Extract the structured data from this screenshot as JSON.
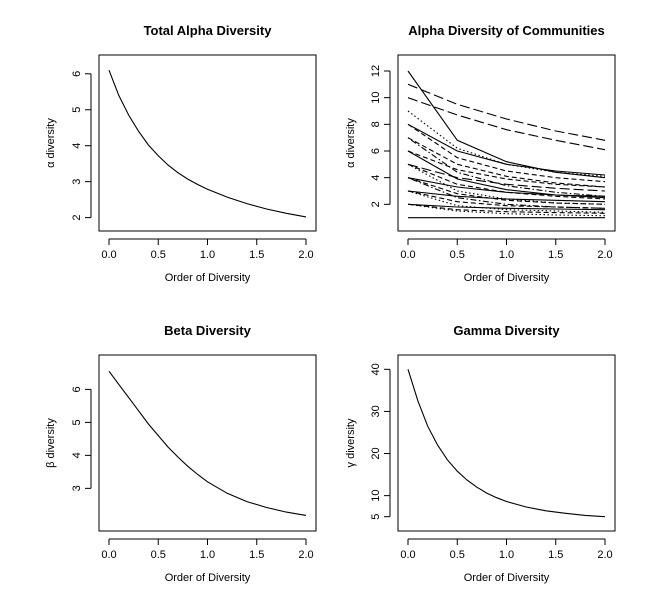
{
  "chart_data": [
    {
      "type": "line",
      "title": "Total Alpha Diversity",
      "xlabel": "Order of Diversity",
      "ylabel": "α diversity",
      "xlim": [
        0,
        2
      ],
      "ylim": [
        1.85,
        6.3
      ],
      "xticks": [
        0,
        0.5,
        1,
        1.5,
        2
      ],
      "xtick_labels": [
        "0.0",
        "0.5",
        "1.0",
        "1.5",
        "2.0"
      ],
      "yticks": [
        2,
        3,
        4,
        5,
        6
      ],
      "ytick_labels": [
        "2",
        "3",
        "4",
        "5",
        "6"
      ],
      "series": [
        {
          "x": [
            0,
            0.1,
            0.2,
            0.3,
            0.4,
            0.5,
            0.6,
            0.7,
            0.8,
            0.9,
            1.0,
            1.2,
            1.4,
            1.6,
            1.8,
            2.0
          ],
          "y": [
            6.1,
            5.4,
            4.85,
            4.4,
            4.02,
            3.72,
            3.46,
            3.25,
            3.07,
            2.92,
            2.79,
            2.57,
            2.39,
            2.24,
            2.12,
            2.02
          ],
          "dash": "solid"
        }
      ]
    },
    {
      "type": "line",
      "title": "Alpha Diversity of Communities",
      "xlabel": "Order of Diversity",
      "ylabel": "α diversity",
      "xlim": [
        0,
        2
      ],
      "ylim": [
        0.6,
        12.6
      ],
      "xticks": [
        0,
        0.5,
        1,
        1.5,
        2
      ],
      "xtick_labels": [
        "0.0",
        "0.5",
        "1.0",
        "1.5",
        "2.0"
      ],
      "yticks": [
        2,
        4,
        6,
        8,
        10,
        12
      ],
      "ytick_labels": [
        "2",
        "4",
        "6",
        "8",
        "10",
        "12"
      ],
      "series": [
        {
          "x": [
            0,
            2
          ],
          "y": [
            1.0,
            1.0
          ],
          "dash": "solid"
        },
        {
          "x": [
            0,
            0.5,
            1.0,
            1.5,
            2.0
          ],
          "y": [
            12.0,
            6.8,
            5.2,
            4.4,
            4.0
          ],
          "dash": "solid"
        },
        {
          "x": [
            0,
            0.5,
            1.0,
            1.5,
            2.0
          ],
          "y": [
            11.0,
            9.5,
            8.4,
            7.5,
            6.8
          ],
          "dash": "longdash"
        },
        {
          "x": [
            0,
            0.5,
            1.0,
            1.5,
            2.0
          ],
          "y": [
            10.0,
            8.7,
            7.6,
            6.8,
            6.1
          ],
          "dash": "longdash"
        },
        {
          "x": [
            0,
            0.5,
            1.0,
            1.5,
            2.0
          ],
          "y": [
            9.0,
            6.2,
            5.0,
            4.4,
            4.1
          ],
          "dash": "dotted"
        },
        {
          "x": [
            0,
            0.5,
            1.0,
            1.5,
            2.0
          ],
          "y": [
            8.0,
            6.0,
            5.0,
            4.5,
            4.2
          ],
          "dash": "solid"
        },
        {
          "x": [
            0,
            0.5,
            1.0,
            1.5,
            2.0
          ],
          "y": [
            8.0,
            5.5,
            4.5,
            4.0,
            3.7
          ],
          "dash": "dashed"
        },
        {
          "x": [
            0,
            0.5,
            1.0,
            1.5,
            2.0
          ],
          "y": [
            7.0,
            5.0,
            4.1,
            3.6,
            3.3
          ],
          "dash": "dashed"
        },
        {
          "x": [
            0,
            0.5,
            1.0,
            1.5,
            2.0
          ],
          "y": [
            7.0,
            4.4,
            3.4,
            2.9,
            2.6
          ],
          "dash": "dotdash"
        },
        {
          "x": [
            0,
            0.5,
            1.0,
            1.5,
            2.0
          ],
          "y": [
            6.0,
            4.6,
            3.9,
            3.5,
            3.3
          ],
          "dash": "dashed"
        },
        {
          "x": [
            0,
            0.5,
            1.0,
            1.5,
            2.0
          ],
          "y": [
            6.0,
            3.9,
            3.1,
            2.7,
            2.5
          ],
          "dash": "solid"
        },
        {
          "x": [
            0,
            0.5,
            1.0,
            1.5,
            2.0
          ],
          "y": [
            5.0,
            4.0,
            3.5,
            3.2,
            3.0
          ],
          "dash": "longdash"
        },
        {
          "x": [
            0,
            0.5,
            1.0,
            1.5,
            2.0
          ],
          "y": [
            5.0,
            3.5,
            2.9,
            2.6,
            2.4
          ],
          "dash": "dashed"
        },
        {
          "x": [
            0,
            0.5,
            1.0,
            1.5,
            2.0
          ],
          "y": [
            5.0,
            3.0,
            2.4,
            2.1,
            2.0
          ],
          "dash": "dotted"
        },
        {
          "x": [
            0,
            0.5,
            1.0,
            1.5,
            2.0
          ],
          "y": [
            4.0,
            3.3,
            2.9,
            2.7,
            2.6
          ],
          "dash": "solid"
        },
        {
          "x": [
            0,
            0.5,
            1.0,
            1.5,
            2.0
          ],
          "y": [
            4.0,
            2.8,
            2.3,
            2.1,
            2.0
          ],
          "dash": "dashed"
        },
        {
          "x": [
            0,
            0.5,
            1.0,
            1.5,
            2.0
          ],
          "y": [
            4.0,
            2.5,
            2.0,
            1.8,
            1.7
          ],
          "dash": "dotdash"
        },
        {
          "x": [
            0,
            0.5,
            1.0,
            1.5,
            2.0
          ],
          "y": [
            3.0,
            2.6,
            2.4,
            2.3,
            2.2
          ],
          "dash": "solid"
        },
        {
          "x": [
            0,
            0.5,
            1.0,
            1.5,
            2.0
          ],
          "y": [
            3.0,
            2.2,
            1.9,
            1.8,
            1.7
          ],
          "dash": "dashed"
        },
        {
          "x": [
            0,
            0.5,
            1.0,
            1.5,
            2.0
          ],
          "y": [
            3.0,
            1.9,
            1.6,
            1.5,
            1.4
          ],
          "dash": "dotted"
        },
        {
          "x": [
            0,
            0.5,
            1.0,
            1.5,
            2.0
          ],
          "y": [
            2.0,
            1.8,
            1.7,
            1.65,
            1.6
          ],
          "dash": "solid"
        },
        {
          "x": [
            0,
            0.5,
            1.0,
            1.5,
            2.0
          ],
          "y": [
            2.0,
            1.6,
            1.45,
            1.38,
            1.33
          ],
          "dash": "dashed"
        },
        {
          "x": [
            0,
            0.5,
            1.0,
            1.5,
            2.0
          ],
          "y": [
            2.0,
            1.5,
            1.3,
            1.2,
            1.15
          ],
          "dash": "dotted"
        }
      ]
    },
    {
      "type": "line",
      "title": "Beta Diversity",
      "xlabel": "Order of Diversity",
      "ylabel": "β diversity",
      "xlim": [
        0,
        2
      ],
      "ylim": [
        1.95,
        6.8
      ],
      "xticks": [
        0,
        0.5,
        1,
        1.5,
        2
      ],
      "xtick_labels": [
        "0.0",
        "0.5",
        "1.0",
        "1.5",
        "2.0"
      ],
      "yticks": [
        3,
        4,
        5,
        6
      ],
      "ytick_labels": [
        "3",
        "4",
        "5",
        "6"
      ],
      "series": [
        {
          "x": [
            0,
            0.1,
            0.2,
            0.3,
            0.4,
            0.5,
            0.6,
            0.7,
            0.8,
            0.9,
            1.0,
            1.2,
            1.4,
            1.6,
            1.8,
            2.0
          ],
          "y": [
            6.55,
            6.15,
            5.75,
            5.35,
            4.95,
            4.6,
            4.25,
            3.95,
            3.67,
            3.42,
            3.2,
            2.85,
            2.6,
            2.42,
            2.28,
            2.18
          ],
          "dash": "solid"
        }
      ]
    },
    {
      "type": "line",
      "title": "Gamma Diversity",
      "xlabel": "Order of Diversity",
      "ylabel": "γ diversity",
      "xlim": [
        0,
        2
      ],
      "ylim": [
        3.5,
        41.5
      ],
      "xticks": [
        0,
        0.5,
        1,
        1.5,
        2
      ],
      "xtick_labels": [
        "0.0",
        "0.5",
        "1.0",
        "1.5",
        "2.0"
      ],
      "yticks": [
        5,
        10,
        20,
        30,
        40
      ],
      "ytick_labels": [
        "5",
        "10",
        "20",
        "30",
        "40"
      ],
      "series": [
        {
          "x": [
            0,
            0.1,
            0.2,
            0.3,
            0.4,
            0.5,
            0.6,
            0.7,
            0.8,
            0.9,
            1.0,
            1.2,
            1.4,
            1.6,
            1.8,
            2.0
          ],
          "y": [
            40,
            32.5,
            26.5,
            22,
            18.5,
            15.8,
            13.7,
            12,
            10.6,
            9.5,
            8.6,
            7.3,
            6.4,
            5.8,
            5.3,
            5.0
          ],
          "dash": "solid"
        }
      ]
    }
  ]
}
